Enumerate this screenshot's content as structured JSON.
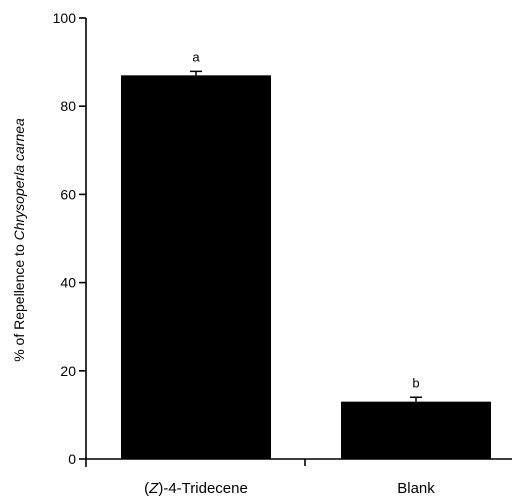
{
  "chart_data": {
    "type": "bar",
    "categories": [
      "(Z)-4-Tridecene",
      "Blank"
    ],
    "category_parts": [
      {
        "italic": "Z",
        "rest": "-4-Tridecene"
      },
      {
        "italic": "",
        "rest": "Blank"
      }
    ],
    "values": [
      87,
      13
    ],
    "errors": [
      0.9,
      1.0
    ],
    "significance_letters": [
      "a",
      "b"
    ],
    "ylabel_prefix": "% of Repellence to ",
    "ylabel_italic": "Chrysoperla carnea",
    "ylim": [
      0,
      100
    ],
    "yticks": [
      0,
      20,
      40,
      60,
      80,
      100
    ],
    "grid": false,
    "bar_color": "#000000"
  }
}
